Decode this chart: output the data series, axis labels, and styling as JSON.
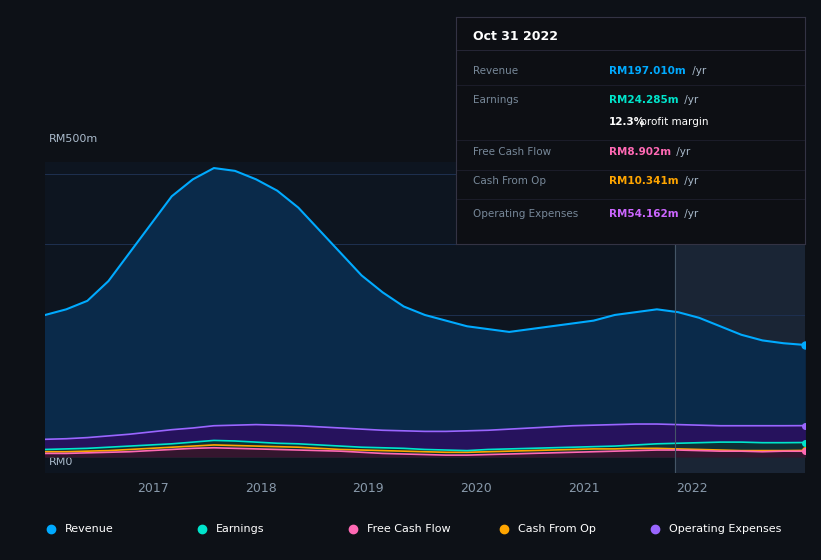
{
  "bg_color": "#0d1117",
  "chart_bg": "#0d1520",
  "highlight_bg": "#1a2535",
  "grid_color": "#1e3050",
  "y_label": "RM500m",
  "y_zero": "RM0",
  "x_ticks": [
    2017,
    2018,
    2019,
    2020,
    2021,
    2022
  ],
  "ylim": [
    -30,
    520
  ],
  "revenue_color": "#00aaff",
  "earnings_color": "#00e5cc",
  "fcf_color": "#ff69b4",
  "cashfromop_color": "#ffa500",
  "opex_color": "#9966ff",
  "legend_items": [
    {
      "label": "Revenue",
      "color": "#00aaff"
    },
    {
      "label": "Earnings",
      "color": "#00e5cc"
    },
    {
      "label": "Free Cash Flow",
      "color": "#ff69b4"
    },
    {
      "label": "Cash From Op",
      "color": "#ffa500"
    },
    {
      "label": "Operating Expenses",
      "color": "#9966ff"
    }
  ],
  "tooltip_title": "Oct 31 2022",
  "tooltip_rows": [
    {
      "label": "Revenue",
      "value": "RM197.010m",
      "suffix": " /yr",
      "color": "#00aaff",
      "is_margin": false
    },
    {
      "label": "Earnings",
      "value": "RM24.285m",
      "suffix": " /yr",
      "color": "#00e5cc",
      "is_margin": false
    },
    {
      "label": "",
      "value": "12.3%",
      "suffix": " profit margin",
      "color": "#ffffff",
      "is_margin": true
    },
    {
      "label": "Free Cash Flow",
      "value": "RM8.902m",
      "suffix": " /yr",
      "color": "#ff69b4",
      "is_margin": false
    },
    {
      "label": "Cash From Op",
      "value": "RM10.341m",
      "suffix": " /yr",
      "color": "#ffa500",
      "is_margin": false
    },
    {
      "label": "Operating Expenses",
      "value": "RM54.162m",
      "suffix": " /yr",
      "color": "#cc66ff",
      "is_margin": false
    }
  ],
  "revenue": [
    250,
    260,
    275,
    310,
    360,
    410,
    460,
    490,
    510,
    505,
    490,
    470,
    440,
    400,
    360,
    320,
    290,
    265,
    250,
    240,
    230,
    225,
    220,
    225,
    230,
    235,
    240,
    250,
    255,
    260,
    255,
    245,
    230,
    215,
    205,
    200,
    197
  ],
  "earnings": [
    12,
    13,
    14,
    16,
    18,
    20,
    22,
    25,
    28,
    27,
    25,
    23,
    22,
    20,
    18,
    16,
    15,
    14,
    12,
    11,
    10,
    12,
    13,
    14,
    15,
    16,
    17,
    18,
    20,
    22,
    23,
    24,
    25,
    25,
    24,
    24,
    24.285
  ],
  "fcf": [
    5,
    5,
    6,
    7,
    8,
    10,
    12,
    14,
    15,
    14,
    13,
    12,
    11,
    10,
    9,
    7,
    5,
    4,
    3,
    2,
    2,
    3,
    4,
    5,
    6,
    7,
    8,
    9,
    10,
    11,
    11,
    10,
    9,
    9,
    8,
    9,
    8.902
  ],
  "cashfromop": [
    8,
    8,
    9,
    10,
    12,
    14,
    16,
    18,
    20,
    19,
    18,
    17,
    16,
    14,
    12,
    11,
    10,
    9,
    8,
    7,
    7,
    8,
    9,
    10,
    11,
    12,
    13,
    13,
    14,
    14,
    13,
    12,
    11,
    10,
    10,
    10,
    10.341
  ],
  "opex": [
    30,
    31,
    33,
    36,
    39,
    43,
    47,
    50,
    54,
    55,
    56,
    55,
    54,
    52,
    50,
    48,
    46,
    45,
    44,
    44,
    45,
    46,
    48,
    50,
    52,
    54,
    55,
    56,
    57,
    57,
    56,
    55,
    54,
    54,
    54,
    54,
    54.162
  ]
}
